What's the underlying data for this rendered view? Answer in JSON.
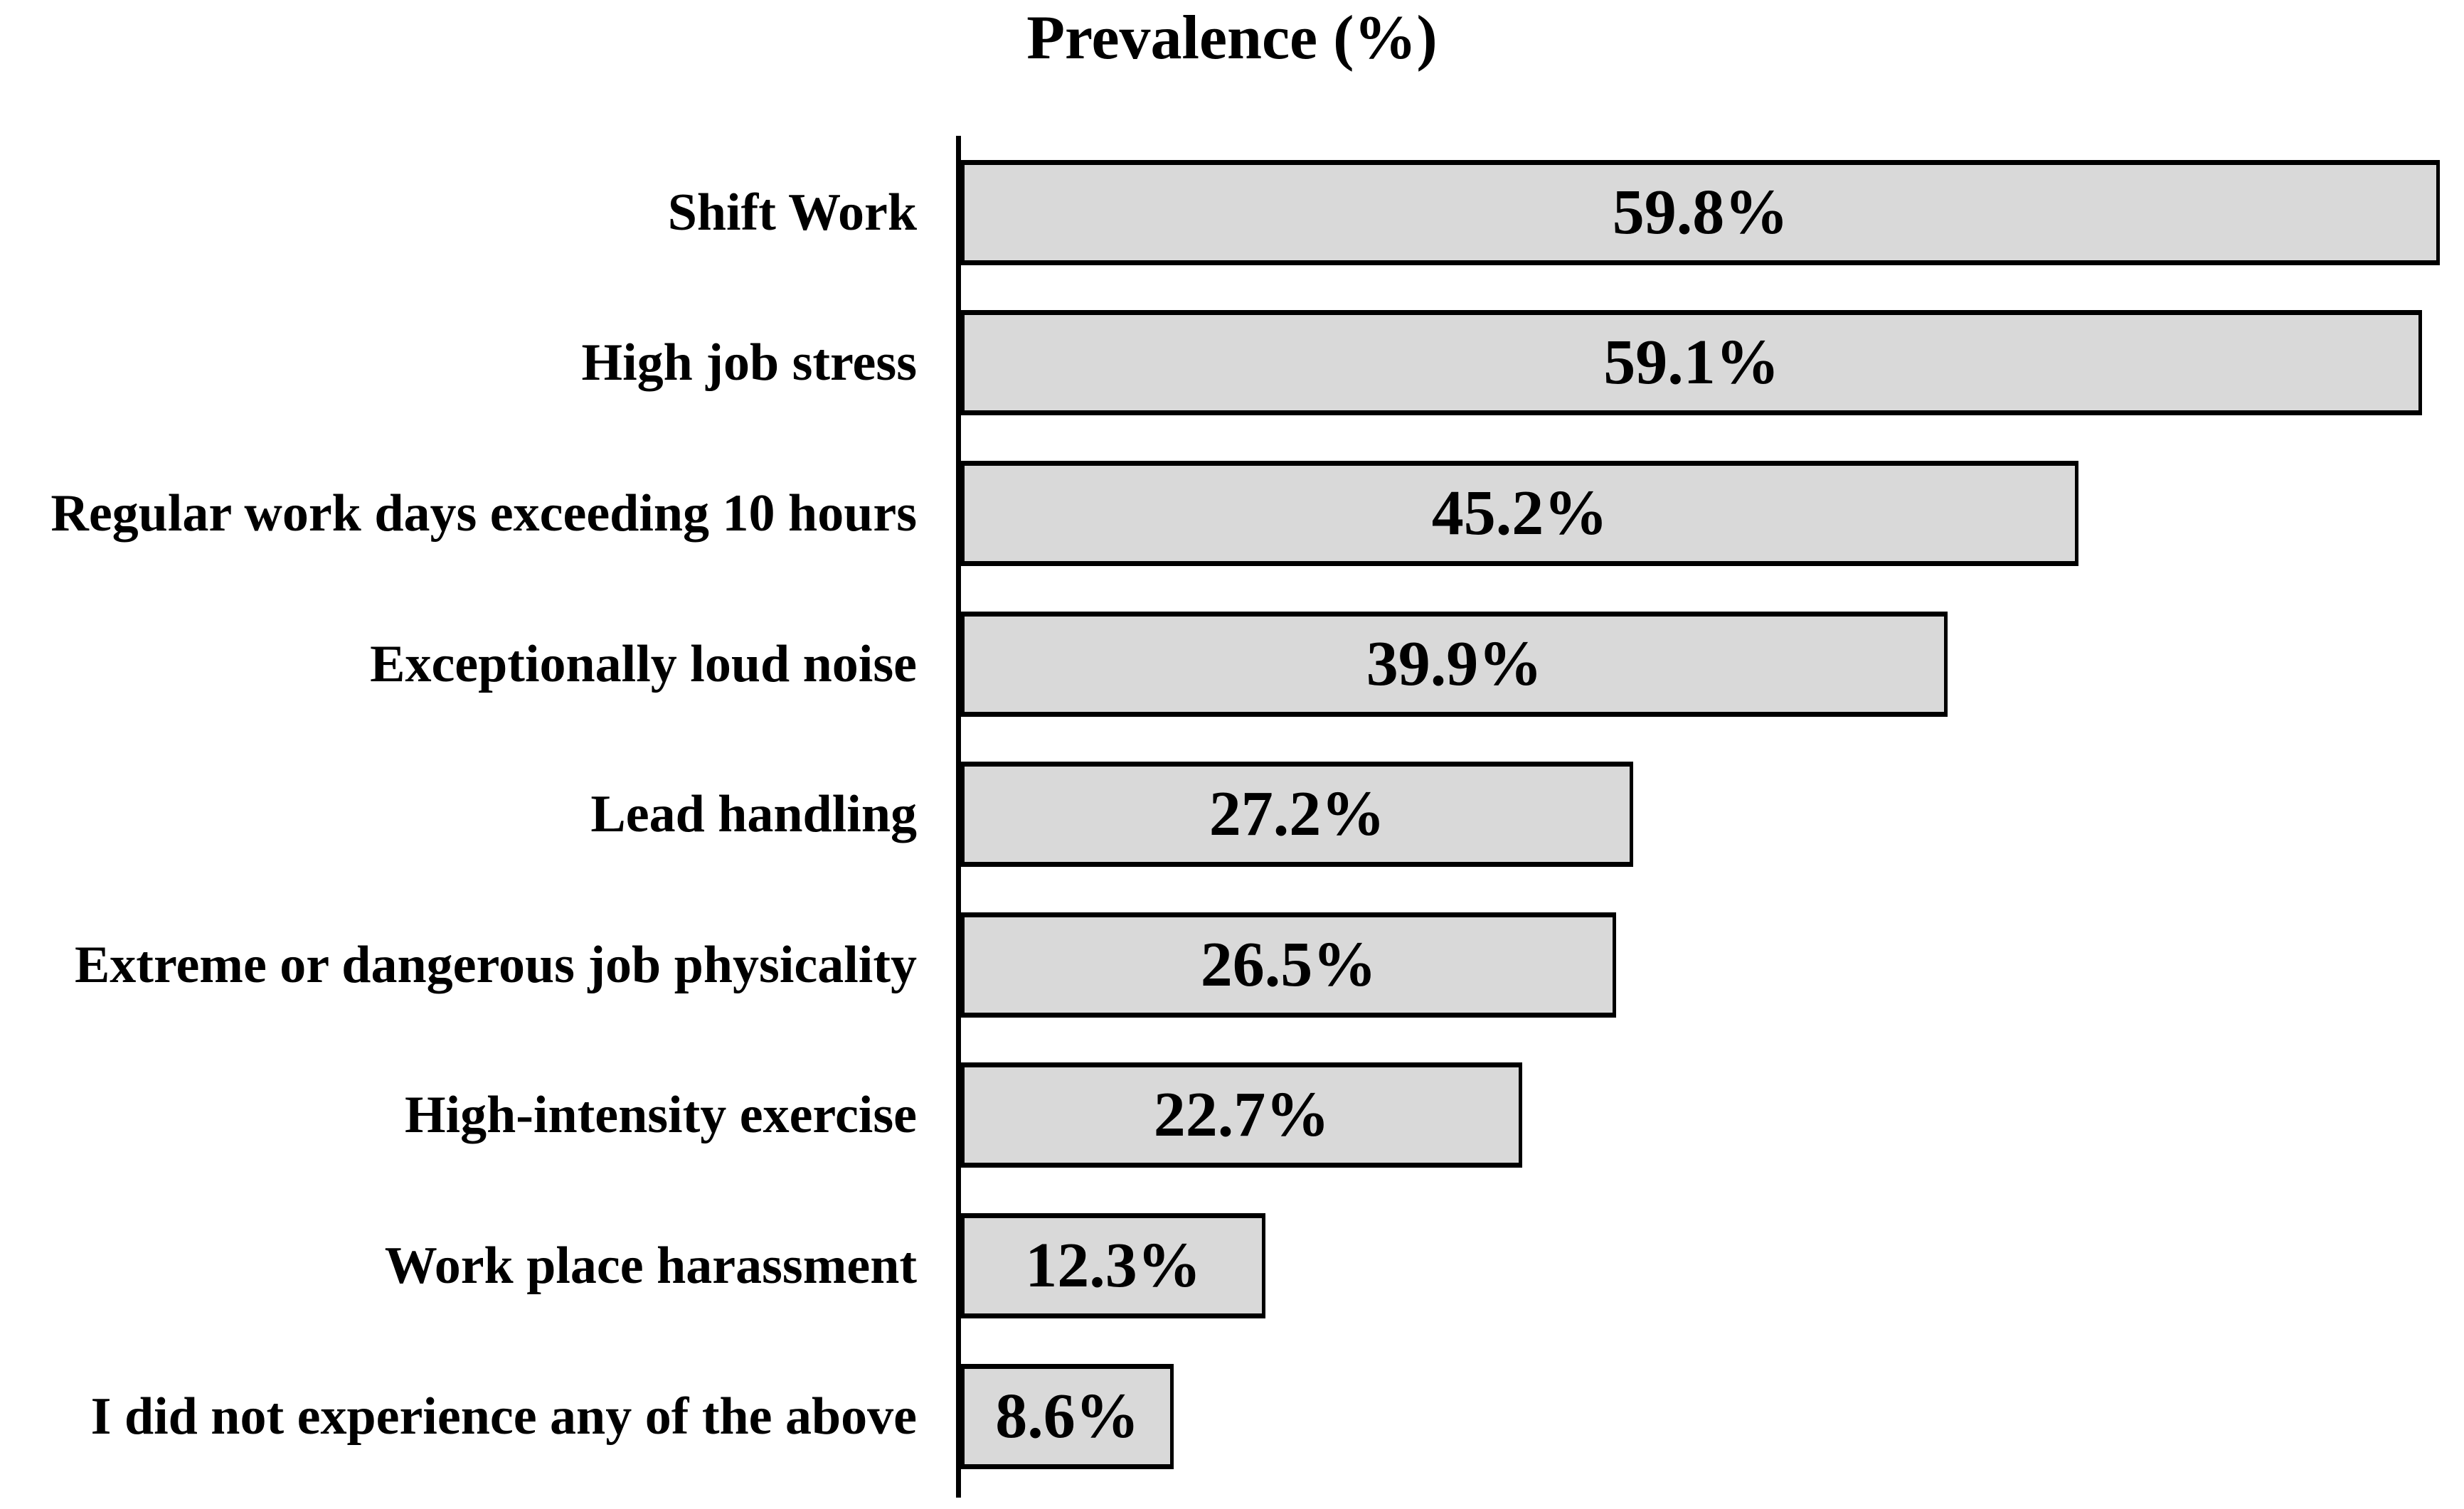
{
  "title": "Prevalence (%)",
  "chart_data": {
    "type": "bar",
    "orientation": "horizontal",
    "title": "Prevalence (%)",
    "categories": [
      "Shift Work",
      "High job stress",
      "Regular work days exceeding 10 hours",
      "Exceptionally loud noise",
      "Lead handling",
      "Extreme or dangerous job physicality",
      "High-intensity exercise",
      "Work place harassment",
      "I did not experience any of the above"
    ],
    "values": [
      59.8,
      59.1,
      45.2,
      39.9,
      27.2,
      26.5,
      22.7,
      12.3,
      8.6
    ],
    "value_labels": [
      "59.8%",
      "59.1%",
      "45.2%",
      "39.9%",
      "27.2%",
      "26.5%",
      "22.7%",
      "12.3%",
      "8.6%"
    ],
    "xlabel": "",
    "ylabel": "",
    "xlim": [
      0,
      60
    ],
    "grid": false,
    "legend": "none",
    "value_label_position": "inside-center",
    "bar_fill": "#d9d9d9",
    "bar_border": "#000000",
    "axis_color": "#000000"
  }
}
